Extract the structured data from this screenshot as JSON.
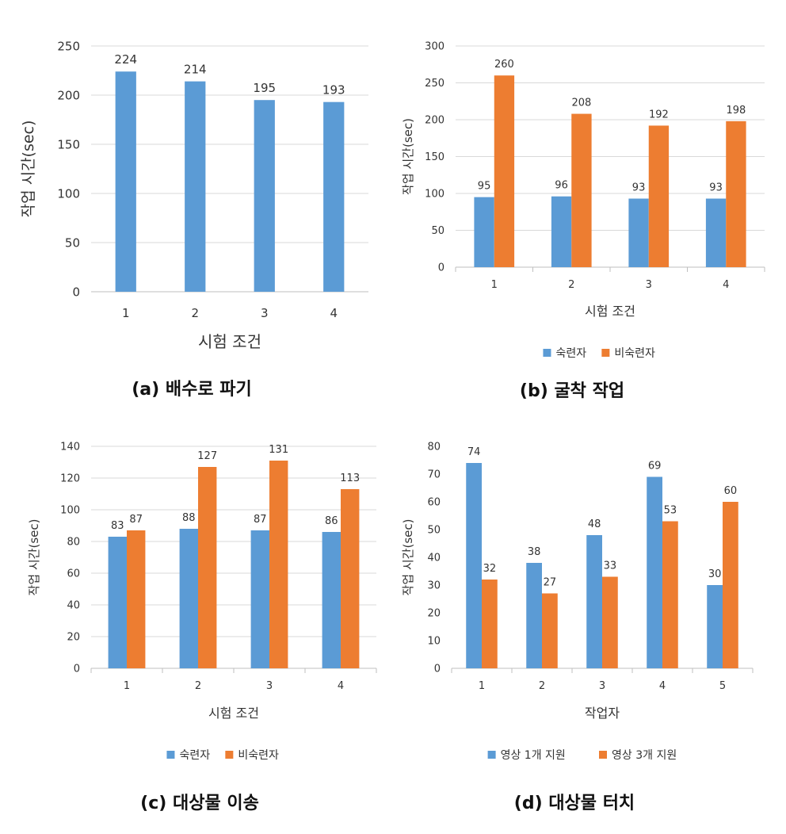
{
  "colors": {
    "blue": "#5b9bd5",
    "orange": "#ed7d31",
    "axis_text": "#333333",
    "grid": "#d9d9d9",
    "axis_line": "#bfbfbf",
    "caption": "#111111"
  },
  "chart_data": [
    {
      "id": "a",
      "type": "bar",
      "caption": "(a) 배수로 파기",
      "xlabel": "시험 조건",
      "ylabel": "작업 시간(sec)",
      "categories": [
        "1",
        "2",
        "3",
        "4"
      ],
      "ylim": [
        0,
        250
      ],
      "ytick_step": 50,
      "grid": true,
      "legend": "none",
      "series": [
        {
          "values": [
            224,
            214,
            195,
            193
          ],
          "color": "#5b9bd5"
        }
      ]
    },
    {
      "id": "b",
      "type": "bar",
      "caption": "(b) 굴착 작업",
      "xlabel": "시험 조건",
      "ylabel": "작업 시간(sec)",
      "categories": [
        "1",
        "2",
        "3",
        "4"
      ],
      "ylim": [
        0,
        300
      ],
      "ytick_step": 50,
      "grid": true,
      "legend": "bottom",
      "series": [
        {
          "name": "숙련자",
          "values": [
            95,
            96,
            93,
            93
          ],
          "color": "#5b9bd5"
        },
        {
          "name": "비숙련자",
          "values": [
            260,
            208,
            192,
            198
          ],
          "color": "#ed7d31"
        }
      ]
    },
    {
      "id": "c",
      "type": "bar",
      "caption": "(c) 대상물 이송",
      "xlabel": "시험 조건",
      "ylabel": "작업 시간(sec)",
      "categories": [
        "1",
        "2",
        "3",
        "4"
      ],
      "ylim": [
        0,
        140
      ],
      "ytick_step": 20,
      "grid": true,
      "legend": "bottom",
      "series": [
        {
          "name": "숙련자",
          "values": [
            83,
            88,
            87,
            86
          ],
          "color": "#5b9bd5"
        },
        {
          "name": "비숙련자",
          "values": [
            87,
            127,
            131,
            113
          ],
          "color": "#ed7d31"
        }
      ]
    },
    {
      "id": "d",
      "type": "bar",
      "caption": "(d) 대상물 터치",
      "xlabel": "작업자",
      "ylabel": "작업 시간(sec)",
      "categories": [
        "1",
        "2",
        "3",
        "4",
        "5"
      ],
      "ylim": [
        0,
        80
      ],
      "ytick_step": 10,
      "grid": false,
      "legend": "bottom",
      "series": [
        {
          "name": "영상 1개 지원",
          "values": [
            74,
            38,
            48,
            69,
            30
          ],
          "color": "#5b9bd5"
        },
        {
          "name": "영상 3개 지원",
          "values": [
            32,
            27,
            33,
            53,
            60
          ],
          "color": "#ed7d31"
        }
      ]
    }
  ]
}
